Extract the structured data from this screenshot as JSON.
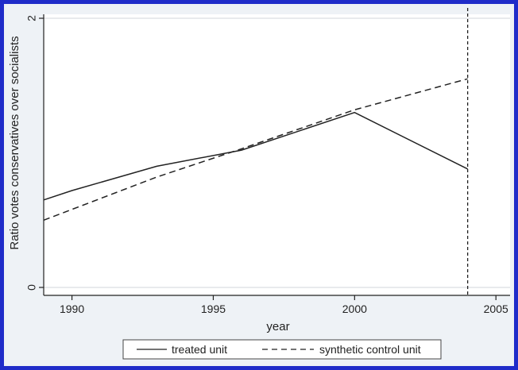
{
  "chart_data": {
    "type": "line",
    "x": [
      1989,
      1990,
      1993,
      1996,
      2000,
      2004
    ],
    "series": [
      {
        "name": "treated unit",
        "values": [
          0.65,
          0.72,
          0.9,
          1.02,
          1.3,
          0.88
        ],
        "style": "solid"
      },
      {
        "name": "synthetic control unit",
        "values": [
          0.5,
          0.58,
          0.82,
          1.03,
          1.32,
          1.55
        ],
        "style": "dashed"
      }
    ],
    "xlabel": "year",
    "ylabel": "Ratio votes conservatives over socialists",
    "x_ticks": [
      "1990",
      "1995",
      "2000",
      "2005"
    ],
    "x_tick_values": [
      1990,
      1995,
      2000,
      2005
    ],
    "y_ticks": [
      "0",
      "2"
    ],
    "y_tick_values": [
      0,
      2
    ],
    "xlim": [
      1989,
      2005.5
    ],
    "ylim": [
      0,
      2
    ],
    "vline_x": 2004,
    "grid": "horizontal",
    "legend": "bottom",
    "colors": {
      "frame": "#1f2cc9",
      "background": "#eef2f6",
      "plot": "#ffffff",
      "line": "#222222"
    }
  }
}
